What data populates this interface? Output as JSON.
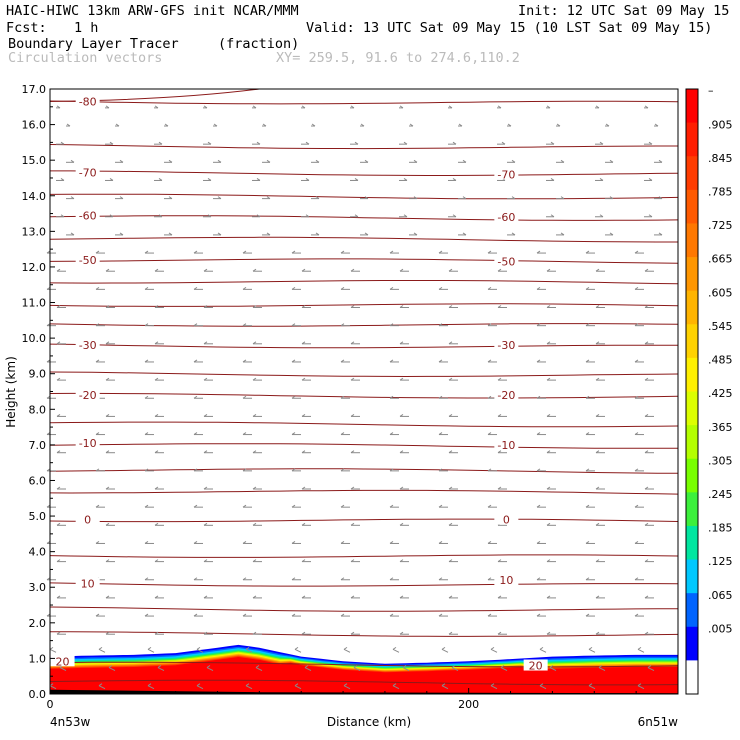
{
  "header": {
    "title_left": "HAIC-HIWC 13km ARW-GFS init   NCAR/MMM",
    "init": "Init: 12 UTC Sat 09 May 15",
    "fcst_label": "Fcst:",
    "fcst_value": "1 h",
    "valid": "Valid: 13 UTC Sat 09 May 15 (10 LST Sat 09 May 15)",
    "field_name": "Boundary Layer Tracer",
    "field_units": "(fraction)",
    "vector_name": "Circulation vectors",
    "xy": "XY= 259.5, 91.6 to 274.6,110.2"
  },
  "chart_data": {
    "type": "heatmap",
    "ylabel": "Height (km)",
    "xlabel": "Distance (km)",
    "x_start_label": "4n53w",
    "x_end_label": "6n51w",
    "xlim": [
      0,
      300
    ],
    "ylim": [
      0,
      17
    ],
    "xticks": [
      0,
      200
    ],
    "yticks": [
      "0.0",
      "1.0",
      "2.0",
      "3.0",
      "4.0",
      "5.0",
      "6.0",
      "7.0",
      "8.0",
      "9.0",
      "10.0",
      "11.0",
      "12.0",
      "13.0",
      "14.0",
      "15.0",
      "16.0",
      "17.0"
    ],
    "colorbar": {
      "labels": [
        "–",
        ".905",
        ".845",
        ".785",
        ".725",
        ".665",
        ".605",
        ".545",
        ".485",
        ".425",
        ".365",
        ".305",
        ".245",
        ".185",
        ".125",
        ".065",
        ".005"
      ],
      "colors_top_to_bottom": [
        "#ff0000",
        "#ff1e00",
        "#ff3c00",
        "#ff5a00",
        "#ff7800",
        "#ff9600",
        "#ffb400",
        "#ffd200",
        "#fff000",
        "#dcff00",
        "#b4ff00",
        "#78ff00",
        "#3cf03c",
        "#00e6a0",
        "#00c8ff",
        "#0064ff",
        "#0000ff",
        "#ffffff"
      ]
    },
    "boundary_layer_top_km": [
      [
        0,
        1.05
      ],
      [
        20,
        1.08
      ],
      [
        40,
        1.1
      ],
      [
        60,
        1.15
      ],
      [
        80,
        1.3
      ],
      [
        90,
        1.38
      ],
      [
        100,
        1.3
      ],
      [
        120,
        1.05
      ],
      [
        140,
        0.92
      ],
      [
        160,
        0.85
      ],
      [
        180,
        0.88
      ],
      [
        200,
        0.92
      ],
      [
        220,
        0.98
      ],
      [
        240,
        1.05
      ],
      [
        260,
        1.08
      ],
      [
        280,
        1.1
      ],
      [
        300,
        1.1
      ]
    ],
    "contour_labels": [
      {
        "text": "-80",
        "x": 18,
        "y": 16.65
      },
      {
        "text": "-70",
        "x": 18,
        "y": 14.65
      },
      {
        "text": "-70",
        "x": 218,
        "y": 14.6
      },
      {
        "text": "-60",
        "x": 18,
        "y": 13.45
      },
      {
        "text": "-60",
        "x": 218,
        "y": 13.4
      },
      {
        "text": "-50",
        "x": 18,
        "y": 12.2
      },
      {
        "text": "-50",
        "x": 218,
        "y": 12.15
      },
      {
        "text": "-30",
        "x": 18,
        "y": 9.8
      },
      {
        "text": "-30",
        "x": 218,
        "y": 9.8
      },
      {
        "text": "-20",
        "x": 18,
        "y": 8.4
      },
      {
        "text": "-20",
        "x": 218,
        "y": 8.4
      },
      {
        "text": "-10",
        "x": 18,
        "y": 7.05
      },
      {
        "text": "-10",
        "x": 218,
        "y": 7.0
      },
      {
        "text": "0",
        "x": 18,
        "y": 4.9
      },
      {
        "text": "0",
        "x": 218,
        "y": 4.9
      },
      {
        "text": "10",
        "x": 18,
        "y": 3.1
      },
      {
        "text": "10",
        "x": 218,
        "y": 3.2
      },
      {
        "text": "20",
        "x": 6,
        "y": 0.92
      },
      {
        "text": "20",
        "x": 232,
        "y": 0.8
      }
    ],
    "isotherm_heights_km": [
      0.35,
      0.85,
      1.7,
      2.4,
      3.1,
      3.9,
      4.9,
      5.7,
      6.3,
      7.0,
      7.6,
      8.4,
      9.0,
      9.8,
      10.4,
      10.95,
      11.6,
      12.2,
      12.8,
      13.4,
      14.0,
      14.65,
      15.4,
      16.65
    ]
  }
}
